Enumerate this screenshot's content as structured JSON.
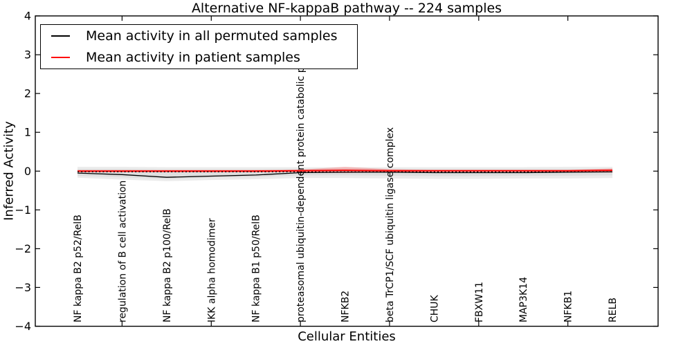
{
  "figure": {
    "title": "Alternative NF-kappaB pathway -- 224 samples",
    "background_color": "#ffffff",
    "axis_color": "#000000"
  },
  "legend": {
    "position": "upper left",
    "entries": [
      {
        "label": "Mean activity in all permuted samples",
        "color": "#000000"
      },
      {
        "label": "Mean activity in patient samples",
        "color": "#ff0000"
      }
    ]
  },
  "chart_data": {
    "type": "line",
    "title": "Alternative NF-kappaB pathway -- 224 samples",
    "xlabel": "Cellular Entities",
    "ylabel": "Inferred Activity",
    "ylim": [
      -4,
      4
    ],
    "yticks": [
      4,
      3,
      2,
      1,
      0,
      -1,
      -2,
      -3,
      -4
    ],
    "ytick_labels": [
      "4",
      "3",
      "2",
      "1",
      "0",
      "−1",
      "−2",
      "−3",
      "−4"
    ],
    "grid": false,
    "legend_position": "upper left",
    "categories": [
      "NF kappa B2 p52/RelB",
      "regulation of B cell activation",
      "NF kappa B2 p100/RelB",
      "IKK alpha homodimer",
      "NF kappa B1 p50/RelB",
      "proteasomal ubiquitin-dependent protein catabolic pr",
      "NFKB2",
      "beta TrCP1/SCF ubiquitin ligase complex",
      "CHUK",
      "FBXW11",
      "MAP3K14",
      "NFKB1",
      "RELB"
    ],
    "xtick_mark_indices": [
      1,
      3,
      5,
      7,
      9,
      11
    ],
    "series": [
      {
        "name": "Mean activity in all permuted samples",
        "color": "#000000",
        "line_width": 1.3,
        "values": [
          -0.05,
          -0.09,
          -0.16,
          -0.13,
          -0.1,
          -0.04,
          -0.03,
          -0.03,
          -0.04,
          -0.04,
          -0.04,
          -0.03,
          -0.02
        ],
        "band_upper": [
          0.11,
          0.11,
          0.1,
          0.1,
          0.1,
          0.1,
          0.1,
          0.1,
          0.1,
          0.1,
          0.1,
          0.11,
          0.11
        ],
        "band_lower": [
          -0.17,
          -0.22,
          -0.26,
          -0.23,
          -0.21,
          -0.18,
          -0.18,
          -0.19,
          -0.2,
          -0.2,
          -0.19,
          -0.19,
          -0.18
        ],
        "band_color": "rgba(0,0,0,0.08)",
        "inner_band_upper": [
          0.05,
          0.05,
          0.04,
          0.04,
          0.04,
          0.05,
          0.05,
          0.05,
          0.05,
          0.05,
          0.05,
          0.05,
          0.05
        ],
        "inner_band_lower": [
          -0.12,
          -0.16,
          -0.2,
          -0.17,
          -0.15,
          -0.11,
          -0.11,
          -0.12,
          -0.13,
          -0.13,
          -0.12,
          -0.12,
          -0.11
        ],
        "inner_band_color": "rgba(0,0,0,0.055)"
      },
      {
        "name": "Mean activity in patient samples",
        "color": "#ff0000",
        "line_width": 2,
        "values": [
          0.0,
          0.0,
          0.0,
          0.0,
          0.0,
          0.01,
          0.02,
          0.01,
          0.01,
          0.01,
          0.01,
          0.01,
          0.02
        ],
        "band_upper": [
          0.03,
          0.03,
          0.03,
          0.03,
          0.03,
          0.04,
          0.11,
          0.05,
          0.03,
          0.03,
          0.03,
          0.03,
          0.07
        ],
        "band_lower": [
          -0.03,
          -0.03,
          -0.03,
          -0.03,
          -0.03,
          -0.03,
          -0.05,
          -0.03,
          -0.02,
          -0.02,
          -0.02,
          -0.02,
          -0.04
        ],
        "band_color": "rgba(255,0,0,0.22)"
      }
    ],
    "zero_line": {
      "value": 0,
      "style": "dashed",
      "color": "#000000"
    }
  }
}
